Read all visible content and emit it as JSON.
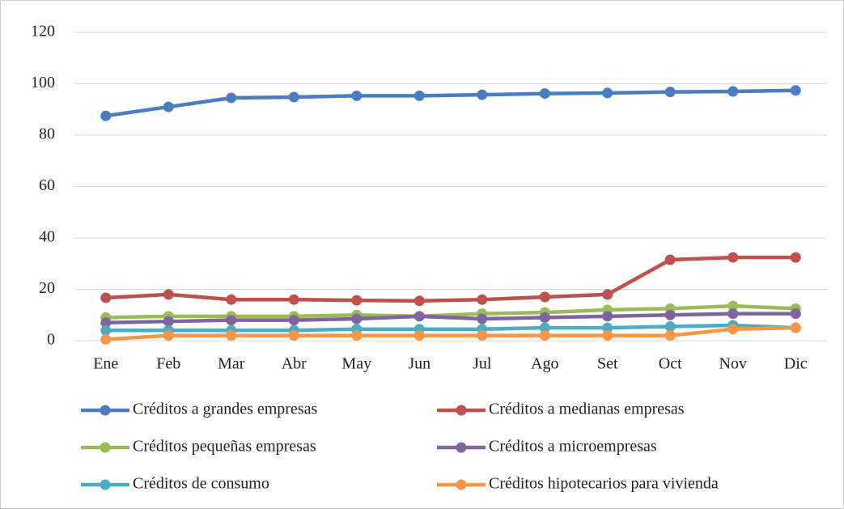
{
  "chart_data": {
    "type": "line",
    "categories": [
      "Ene",
      "Feb",
      "Mar",
      "Abr",
      "May",
      "Jun",
      "Jul",
      "Ago",
      "Set",
      "Oct",
      "Nov",
      "Dic"
    ],
    "series": [
      {
        "name": "Créditos a grandes empresas",
        "color": "#4a7cc2",
        "values": [
          87.5,
          91,
          94.5,
          94.8,
          95.3,
          95.3,
          95.7,
          96.2,
          96.4,
          96.8,
          97,
          97.4
        ]
      },
      {
        "name": "Créditos a medianas empresas",
        "color": "#c0504d",
        "values": [
          16.7,
          18,
          16,
          16,
          15.7,
          15.5,
          16,
          17,
          18,
          31.5,
          32.4,
          32.4
        ]
      },
      {
        "name": "Créditos pequeñas empresas",
        "color": "#9bbb59",
        "values": [
          9,
          9.5,
          9.5,
          9.5,
          10,
          9.5,
          10.5,
          11,
          12,
          12.5,
          13.5,
          12.5
        ]
      },
      {
        "name": "Créditos a microempresas",
        "color": "#8064a2",
        "values": [
          7,
          7.5,
          8,
          8,
          8.5,
          9.5,
          8.5,
          9,
          9.5,
          10,
          10.5,
          10.5
        ]
      },
      {
        "name": "Créditos de consumo",
        "color": "#4bacc6",
        "values": [
          4,
          4,
          4,
          4,
          4.5,
          4.5,
          4.5,
          5,
          5,
          5.5,
          6,
          5
        ]
      },
      {
        "name": "Créditos hipotecarios para vivienda",
        "color": "#f79646",
        "values": [
          0.5,
          2,
          2,
          2,
          2,
          2,
          2,
          2,
          2,
          2,
          4.5,
          5
        ]
      }
    ],
    "ylim": [
      0,
      120
    ],
    "yticks": [
      0,
      20,
      40,
      60,
      80,
      100,
      120
    ],
    "grid": true,
    "legend": "bottom"
  }
}
